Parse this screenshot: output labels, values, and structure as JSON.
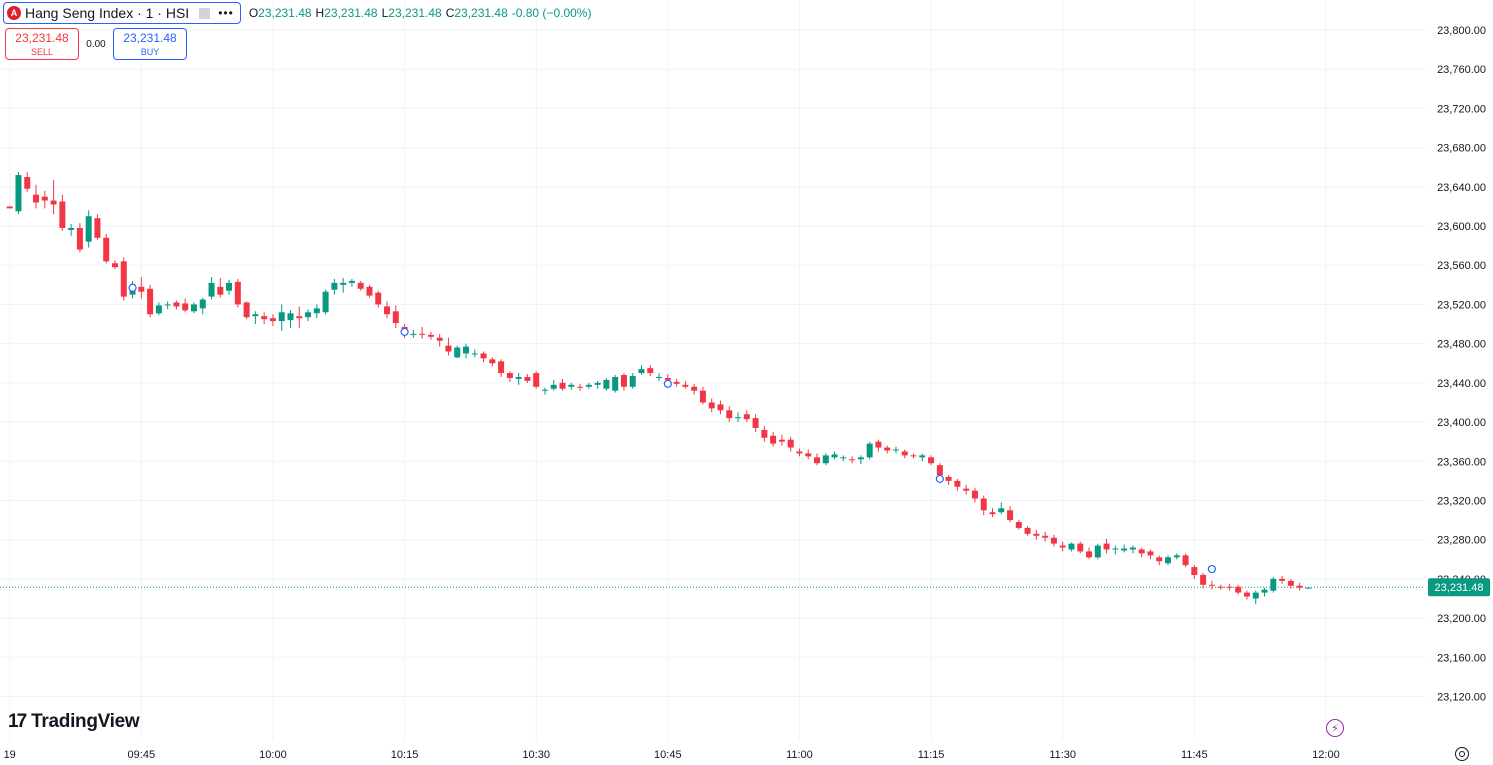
{
  "legend": {
    "logo_letter": "A",
    "title": "Hang Seng Index · 1 · HSI",
    "more_icon": "more-icon",
    "open_label": "O",
    "open": "23,231.48",
    "high_label": "H",
    "high": "23,231.48",
    "low_label": "L",
    "low": "23,231.48",
    "close_label": "C",
    "close": "23,231.48",
    "change": "-0.80 (−0.00%)"
  },
  "trade": {
    "sell_price": "23,231.48",
    "sell_label": "SELL",
    "spread": "0.00",
    "buy_price": "23,231.48",
    "buy_label": "BUY"
  },
  "brand": {
    "logo_text": "TradingView"
  },
  "colors": {
    "up": "#089981",
    "down": "#f23645",
    "grid": "#f0f3fa",
    "last_price": "#089981",
    "marker": "#2962ff"
  },
  "chart_data": {
    "type": "candlestick",
    "symbol": "HSI",
    "interval": "1",
    "y_ticks": [
      23800,
      23760,
      23720,
      23680,
      23640,
      23600,
      23560,
      23520,
      23480,
      23440,
      23400,
      23360,
      23320,
      23280,
      23240,
      23200,
      23160,
      23120
    ],
    "y_tick_labels": [
      "23,800.00",
      "23,760.00",
      "23,720.00",
      "23,680.00",
      "23,640.00",
      "23,600.00",
      "23,560.00",
      "23,520.00",
      "23,480.00",
      "23,440.00",
      "23,400.00",
      "23,360.00",
      "23,320.00",
      "23,280.00",
      "23,240.00",
      "23,200.00",
      "23,160.00",
      "23,120.00"
    ],
    "x_tick_labels": [
      "19",
      "09:45",
      "10:00",
      "10:15",
      "10:30",
      "10:45",
      "11:00",
      "11:15",
      "11:30",
      "11:45",
      "12:00"
    ],
    "last_price": 23231.48,
    "last_price_label": "23,231.48",
    "first_visible_minute": "09:30",
    "candles": [
      [
        23620,
        23620,
        23618,
        23618
      ],
      [
        23615,
        23655,
        23612,
        23652
      ],
      [
        23650,
        23655,
        23635,
        23638
      ],
      [
        23632,
        23642,
        23618,
        23624
      ],
      [
        23630,
        23636,
        23618,
        23626
      ],
      [
        23626,
        23647,
        23612,
        23622
      ],
      [
        23625,
        23632,
        23595,
        23598
      ],
      [
        23596,
        23602,
        23590,
        23598
      ],
      [
        23598,
        23603,
        23573,
        23576
      ],
      [
        23584,
        23616,
        23578,
        23610
      ],
      [
        23608,
        23612,
        23586,
        23588
      ],
      [
        23588,
        23592,
        23562,
        23564
      ],
      [
        23562,
        23565,
        23556,
        23558
      ],
      [
        23564,
        23568,
        23524,
        23528
      ],
      [
        23530,
        23544,
        23526,
        23538
      ],
      [
        23538,
        23548,
        23526,
        23533
      ],
      [
        23536,
        23540,
        23507,
        23510
      ],
      [
        23511,
        23522,
        23509,
        23519
      ],
      [
        23519,
        23523,
        23515,
        23520
      ],
      [
        23522,
        23524,
        23515,
        23518
      ],
      [
        23521,
        23526,
        23512,
        23514
      ],
      [
        23513,
        23522,
        23511,
        23520
      ],
      [
        23516,
        23527,
        23510,
        23525
      ],
      [
        23528,
        23548,
        23525,
        23542
      ],
      [
        23538,
        23547,
        23527,
        23530
      ],
      [
        23534,
        23545,
        23530,
        23542
      ],
      [
        23543,
        23546,
        23517,
        23520
      ],
      [
        23522,
        23523,
        23505,
        23507
      ],
      [
        23508,
        23513,
        23500,
        23510
      ],
      [
        23508,
        23512,
        23500,
        23505
      ],
      [
        23506,
        23510,
        23498,
        23503
      ],
      [
        23503,
        23520,
        23493,
        23512
      ],
      [
        23504,
        23514,
        23496,
        23511
      ],
      [
        23508,
        23518,
        23496,
        23506
      ],
      [
        23507,
        23515,
        23503,
        23512
      ],
      [
        23511,
        23520,
        23506,
        23516
      ],
      [
        23512,
        23535,
        23510,
        23533
      ],
      [
        23535,
        23546,
        23530,
        23542
      ],
      [
        23540,
        23547,
        23532,
        23542
      ],
      [
        23542,
        23546,
        23538,
        23544
      ],
      [
        23542,
        23544,
        23534,
        23536
      ],
      [
        23538,
        23540,
        23527,
        23529
      ],
      [
        23532,
        23534,
        23517,
        23520
      ],
      [
        23518,
        23523,
        23506,
        23510
      ],
      [
        23513,
        23519,
        23496,
        23501
      ],
      [
        23497,
        23500,
        23486,
        23490
      ],
      [
        23490,
        23494,
        23486,
        23490
      ],
      [
        23490,
        23497,
        23485,
        23489
      ],
      [
        23489,
        23492,
        23484,
        23487
      ],
      [
        23486,
        23490,
        23477,
        23483
      ],
      [
        23478,
        23486,
        23468,
        23472
      ],
      [
        23466,
        23478,
        23465,
        23476
      ],
      [
        23470,
        23480,
        23465,
        23477
      ],
      [
        23470,
        23474,
        23466,
        23470
      ],
      [
        23470,
        23472,
        23461,
        23465
      ],
      [
        23464,
        23466,
        23457,
        23460
      ],
      [
        23462,
        23464,
        23446,
        23450
      ],
      [
        23450,
        23452,
        23441,
        23445
      ],
      [
        23444,
        23450,
        23438,
        23446
      ],
      [
        23446,
        23449,
        23440,
        23442
      ],
      [
        23450,
        23452,
        23434,
        23436
      ],
      [
        23432,
        23435,
        23428,
        23433
      ],
      [
        23434,
        23443,
        23432,
        23438
      ],
      [
        23440,
        23444,
        23432,
        23434
      ],
      [
        23436,
        23440,
        23433,
        23438
      ],
      [
        23436,
        23439,
        23432,
        23435
      ],
      [
        23436,
        23440,
        23434,
        23438
      ],
      [
        23438,
        23442,
        23434,
        23440
      ],
      [
        23434,
        23445,
        23432,
        23443
      ],
      [
        23432,
        23448,
        23430,
        23446
      ],
      [
        23448,
        23450,
        23432,
        23436
      ],
      [
        23436,
        23450,
        23434,
        23447
      ],
      [
        23450,
        23458,
        23448,
        23454
      ],
      [
        23455,
        23458,
        23447,
        23450
      ],
      [
        23446,
        23450,
        23442,
        23446
      ],
      [
        23445,
        23449,
        23440,
        23443
      ],
      [
        23441,
        23444,
        23436,
        23439
      ],
      [
        23438,
        23442,
        23434,
        23436
      ],
      [
        23436,
        23439,
        23428,
        23432
      ],
      [
        23432,
        23436,
        23418,
        23420
      ],
      [
        23420,
        23424,
        23410,
        23414
      ],
      [
        23418,
        23422,
        23408,
        23412
      ],
      [
        23412,
        23416,
        23400,
        23404
      ],
      [
        23404,
        23410,
        23400,
        23405
      ],
      [
        23408,
        23412,
        23400,
        23403
      ],
      [
        23404,
        23408,
        23390,
        23394
      ],
      [
        23392,
        23396,
        23380,
        23384
      ],
      [
        23386,
        23390,
        23375,
        23378
      ],
      [
        23382,
        23387,
        23376,
        23380
      ],
      [
        23382,
        23385,
        23370,
        23374
      ],
      [
        23370,
        23373,
        23365,
        23368
      ],
      [
        23368,
        23372,
        23362,
        23365
      ],
      [
        23364,
        23368,
        23356,
        23358
      ],
      [
        23358,
        23368,
        23356,
        23366
      ],
      [
        23364,
        23370,
        23362,
        23367
      ],
      [
        23364,
        23366,
        23360,
        23364
      ],
      [
        23362,
        23365,
        23358,
        23361
      ],
      [
        23362,
        23366,
        23357,
        23364
      ],
      [
        23364,
        23380,
        23362,
        23378
      ],
      [
        23380,
        23382,
        23370,
        23374
      ],
      [
        23374,
        23376,
        23368,
        23371
      ],
      [
        23372,
        23375,
        23368,
        23372
      ],
      [
        23370,
        23372,
        23363,
        23366
      ],
      [
        23366,
        23368,
        23363,
        23365
      ],
      [
        23364,
        23368,
        23360,
        23366
      ],
      [
        23364,
        23366,
        23356,
        23358
      ],
      [
        23356,
        23358,
        23344,
        23346
      ],
      [
        23344,
        23346,
        23336,
        23340
      ],
      [
        23340,
        23342,
        23330,
        23334
      ],
      [
        23332,
        23336,
        23326,
        23330
      ],
      [
        23330,
        23333,
        23318,
        23322
      ],
      [
        23322,
        23325,
        23305,
        23310
      ],
      [
        23308,
        23312,
        23303,
        23306
      ],
      [
        23308,
        23318,
        23306,
        23312
      ],
      [
        23310,
        23314,
        23298,
        23300
      ],
      [
        23298,
        23300,
        23290,
        23292
      ],
      [
        23292,
        23294,
        23284,
        23286
      ],
      [
        23286,
        23290,
        23280,
        23284
      ],
      [
        23284,
        23288,
        23278,
        23282
      ],
      [
        23282,
        23285,
        23273,
        23276
      ],
      [
        23274,
        23278,
        23268,
        23272
      ],
      [
        23270,
        23277,
        23268,
        23276
      ],
      [
        23276,
        23278,
        23266,
        23268
      ],
      [
        23268,
        23272,
        23260,
        23262
      ],
      [
        23262,
        23276,
        23260,
        23274
      ],
      [
        23276,
        23281,
        23266,
        23270
      ],
      [
        23270,
        23274,
        23265,
        23271
      ],
      [
        23269,
        23275,
        23267,
        23271
      ],
      [
        23270,
        23274,
        23266,
        23272
      ],
      [
        23270,
        23272,
        23262,
        23266
      ],
      [
        23268,
        23270,
        23260,
        23264
      ],
      [
        23262,
        23264,
        23254,
        23258
      ],
      [
        23256,
        23264,
        23254,
        23262
      ],
      [
        23262,
        23266,
        23260,
        23264
      ],
      [
        23264,
        23266,
        23252,
        23254
      ],
      [
        23252,
        23254,
        23240,
        23244
      ],
      [
        23244,
        23246,
        23230,
        23234
      ],
      [
        23234,
        23238,
        23229,
        23233
      ],
      [
        23232,
        23234,
        23229,
        23231
      ],
      [
        23232,
        23235,
        23228,
        23231
      ],
      [
        23232,
        23234,
        23224,
        23226
      ],
      [
        23226,
        23228,
        23219,
        23222
      ],
      [
        23220,
        23228,
        23214,
        23226
      ],
      [
        23226,
        23231,
        23222,
        23229
      ],
      [
        23228,
        23242,
        23226,
        23240
      ],
      [
        23240,
        23243,
        23235,
        23238
      ],
      [
        23238,
        23240,
        23230,
        23233
      ],
      [
        23233,
        23236,
        23228,
        23231
      ],
      [
        23231,
        23232,
        23231,
        23231
      ]
    ],
    "markers": [
      {
        "time": "09:44",
        "price": 23537
      },
      {
        "time": "10:15",
        "price": 23492
      },
      {
        "time": "10:45",
        "price": 23439
      },
      {
        "time": "11:16",
        "price": 23342
      },
      {
        "time": "11:47",
        "price": 23250
      }
    ]
  }
}
